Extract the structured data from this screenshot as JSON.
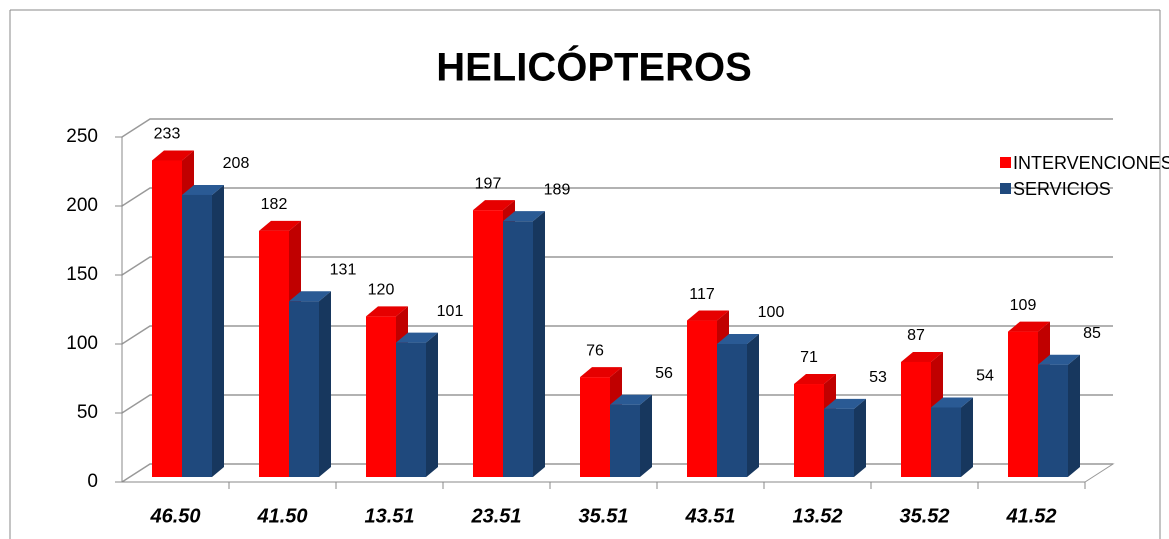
{
  "chart_data": {
    "type": "bar3d",
    "title": "HELICÓPTEROS",
    "categories": [
      "46.50",
      "41.50",
      "13.51",
      "23.51",
      "35.51",
      "43.51",
      "13.52",
      "35.52",
      "41.52"
    ],
    "series": [
      {
        "name": "INTERVENCIONES",
        "color": "#ff0000",
        "values": [
          233,
          182,
          120,
          197,
          76,
          117,
          71,
          87,
          109
        ]
      },
      {
        "name": "SERVICIOS",
        "color": "#1f497d",
        "values": [
          208,
          131,
          101,
          189,
          56,
          100,
          53,
          54,
          85
        ]
      }
    ],
    "ylim": [
      0,
      250
    ],
    "yticks": [
      0,
      50,
      100,
      150,
      200,
      250
    ],
    "grid": true,
    "legend": "top-right"
  }
}
